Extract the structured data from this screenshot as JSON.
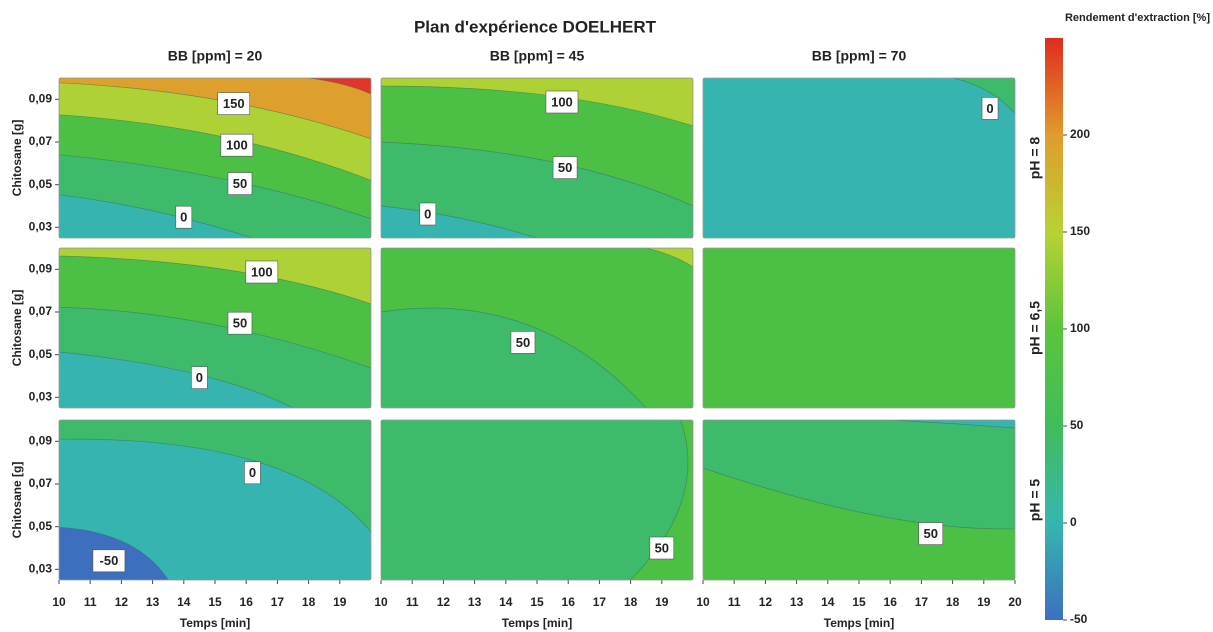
{
  "chart_data": {
    "type": "contour",
    "title": "Plan d'expérience DOELHERT",
    "x_label": "Temps [min]",
    "y_label": "Chitosane [g]",
    "xlim": [
      10,
      20
    ],
    "ylim": [
      0.025,
      0.1
    ],
    "yticks": [
      {
        "value": 0.03,
        "label": "0,03"
      },
      {
        "value": 0.05,
        "label": "0,05"
      },
      {
        "value": 0.07,
        "label": "0,07"
      },
      {
        "value": 0.09,
        "label": "0,09"
      }
    ],
    "columns": [
      {
        "label": "BB [ppm] = 20",
        "xticks": [
          10,
          11,
          12,
          13,
          14,
          15,
          16,
          17,
          18,
          19
        ]
      },
      {
        "label": "BB [ppm] = 45",
        "xticks": [
          10,
          11,
          12,
          13,
          14,
          15,
          16,
          17,
          18,
          19
        ]
      },
      {
        "label": "BB [ppm] = 70",
        "xticks": [
          10,
          11,
          12,
          13,
          14,
          15,
          16,
          17,
          18,
          19,
          20
        ]
      }
    ],
    "rows": [
      {
        "label": "pH = 8"
      },
      {
        "label": "pH = 6,5"
      },
      {
        "label": "pH = 5"
      }
    ],
    "panels": [
      [
        {
          "contour_labels": [
            150,
            100,
            50,
            0
          ]
        },
        {
          "contour_labels": [
            100,
            50,
            0
          ]
        },
        {
          "contour_labels": [
            0
          ]
        }
      ],
      [
        {
          "contour_labels": [
            100,
            50,
            0
          ]
        },
        {
          "contour_labels": [
            50
          ]
        },
        {
          "contour_labels": []
        }
      ],
      [
        {
          "contour_labels": [
            0,
            -50
          ]
        },
        {
          "contour_labels": [
            50
          ]
        },
        {
          "contour_labels": [
            50
          ]
        }
      ]
    ],
    "colorbar": {
      "title": "Rendement d'extraction [%]",
      "lim": [
        -50,
        250
      ],
      "ticks": [
        -50,
        0,
        50,
        100,
        150,
        200
      ],
      "colors": [
        "#3d6fbe",
        "#36b6b0",
        "#40bd5a",
        "#5cc43c",
        "#b8d233",
        "#e09c2c",
        "#e02b20"
      ]
    }
  }
}
